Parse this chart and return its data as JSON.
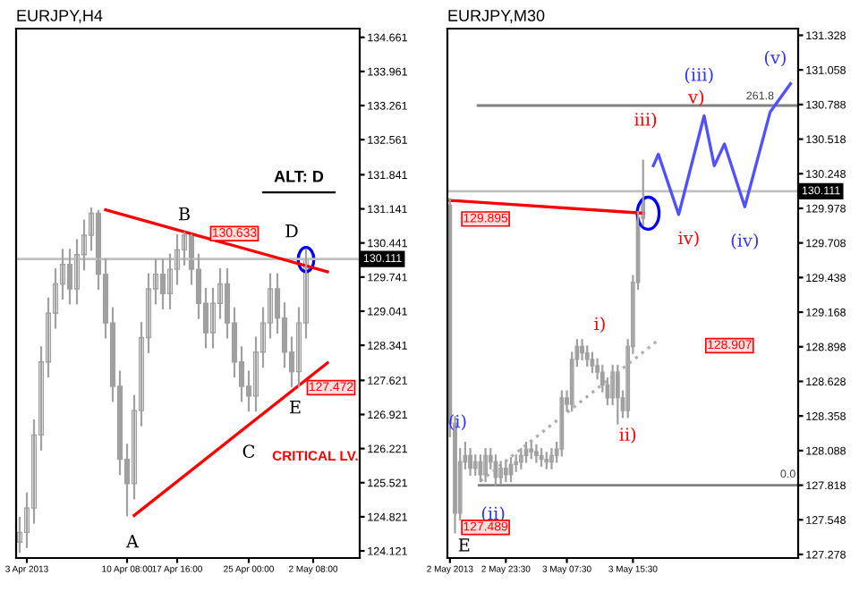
{
  "chart_data": [
    {
      "type": "candlestick",
      "title": "EURJPY,H4",
      "color": "#a0a0a0",
      "categories": [
        null,
        "3 Apr 2013",
        null,
        null,
        null,
        null,
        null,
        null,
        null,
        null,
        null,
        null,
        null,
        null,
        null,
        "10 Apr 08:00",
        null,
        null,
        null,
        null,
        null,
        null,
        "17 Apr 16:00",
        null,
        null,
        null,
        null,
        null,
        null,
        null,
        null,
        null,
        "25 Apr 00:00",
        null,
        null,
        null,
        null,
        null,
        null,
        null,
        null,
        "2 May 08:00",
        null,
        null,
        null,
        null,
        null,
        null
      ],
      "ohlc": [
        [
          124.3,
          124.8,
          124.1,
          124.5
        ],
        [
          124.5,
          125.3,
          124.2,
          125.0
        ],
        [
          125.0,
          126.8,
          124.7,
          126.5
        ],
        [
          126.5,
          128.3,
          126.2,
          128.0
        ],
        [
          128.0,
          129.3,
          127.7,
          129.0
        ],
        [
          129.0,
          129.9,
          128.7,
          129.6
        ],
        [
          129.6,
          130.3,
          129.3,
          130.0
        ],
        [
          130.0,
          130.3,
          129.2,
          129.5
        ],
        [
          129.5,
          130.5,
          129.2,
          130.2
        ],
        [
          130.2,
          130.9,
          129.9,
          130.6
        ],
        [
          130.6,
          131.15,
          130.3,
          131.05
        ],
        [
          131.05,
          131.1,
          129.5,
          129.8
        ],
        [
          129.8,
          130.1,
          128.5,
          128.8
        ],
        [
          128.8,
          129.1,
          127.2,
          127.5
        ],
        [
          127.5,
          127.8,
          125.7,
          126.0
        ],
        [
          126.0,
          126.3,
          124.85,
          125.5
        ],
        [
          125.5,
          127.3,
          125.2,
          127.0
        ],
        [
          127.0,
          128.8,
          126.7,
          128.5
        ],
        [
          128.5,
          129.8,
          128.2,
          129.5
        ],
        [
          129.5,
          130.1,
          129.2,
          129.8
        ],
        [
          129.8,
          130.1,
          129.1,
          129.4
        ],
        [
          129.4,
          130.2,
          129.1,
          129.9
        ],
        [
          129.9,
          130.6,
          129.6,
          130.3
        ],
        [
          130.3,
          130.65,
          130.0,
          130.6
        ],
        [
          130.6,
          130.6,
          129.6,
          129.9
        ],
        [
          129.9,
          130.2,
          128.9,
          129.2
        ],
        [
          129.2,
          129.5,
          128.3,
          128.6
        ],
        [
          128.6,
          129.5,
          128.3,
          129.2
        ],
        [
          129.2,
          129.9,
          128.9,
          129.6
        ],
        [
          129.6,
          129.9,
          128.5,
          128.8
        ],
        [
          128.8,
          129.1,
          127.7,
          128.0
        ],
        [
          128.0,
          128.3,
          127.2,
          127.5
        ],
        [
          127.5,
          127.8,
          127.0,
          127.3
        ],
        [
          127.3,
          128.5,
          127.0,
          128.2
        ],
        [
          128.2,
          129.1,
          127.9,
          128.8
        ],
        [
          128.8,
          129.8,
          128.5,
          129.5
        ],
        [
          129.5,
          129.8,
          128.6,
          128.9
        ],
        [
          128.9,
          129.2,
          127.9,
          128.2
        ],
        [
          128.2,
          128.5,
          127.5,
          127.8
        ],
        [
          127.8,
          129.1,
          127.5,
          128.8
        ],
        [
          128.8,
          130.3,
          128.5,
          130.1
        ],
        null,
        null,
        null,
        null,
        null,
        null,
        null
      ],
      "series": [
        {
          "type": "line",
          "color": "#ff0000",
          "line_style": "solid",
          "values": [
            null,
            null,
            null,
            null,
            null,
            null,
            null,
            null,
            null,
            null,
            null,
            null,
            131.12,
            null,
            null,
            null,
            null,
            null,
            null,
            null,
            null,
            null,
            null,
            null,
            null,
            null,
            null,
            null,
            null,
            null,
            null,
            null,
            null,
            null,
            null,
            null,
            null,
            null,
            null,
            null,
            null,
            null,
            null,
            129.85,
            null,
            null,
            null,
            null
          ]
        },
        {
          "type": "line",
          "color": "#ff0000",
          "line_style": "solid",
          "values": [
            null,
            null,
            null,
            null,
            null,
            null,
            null,
            null,
            null,
            null,
            null,
            null,
            null,
            null,
            null,
            null,
            124.85,
            null,
            null,
            null,
            null,
            null,
            null,
            null,
            null,
            null,
            null,
            null,
            null,
            null,
            null,
            null,
            null,
            null,
            null,
            null,
            null,
            null,
            null,
            null,
            null,
            null,
            null,
            127.98,
            null,
            null,
            null,
            null
          ]
        }
      ],
      "ylim": [
        123.975,
        134.84
      ],
      "yticks": [
        124.121,
        124.821,
        125.521,
        126.221,
        126.921,
        127.621,
        128.341,
        129.041,
        129.741,
        130.441,
        131.141,
        131.841,
        132.561,
        133.261,
        133.961,
        134.661
      ],
      "ref_lines": [
        {
          "axis": "y",
          "value": 130.111,
          "label": "130.111",
          "color": "#c0c0c0"
        }
      ],
      "annotations": [
        "ALT: D",
        "B",
        "D",
        "A",
        "C",
        "E",
        "CRITICAL LV.",
        "130.633",
        "127.472"
      ]
    },
    {
      "type": "candlestick",
      "title": "EURJPY,M30",
      "color": "#a0a0a0",
      "categories": [
        "2 May 2013",
        null,
        null,
        null,
        null,
        null,
        null,
        null,
        null,
        null,
        null,
        "2 May 23:30",
        null,
        null,
        null,
        null,
        null,
        null,
        null,
        null,
        null,
        null,
        null,
        "3 May 07:30",
        null,
        null,
        null,
        null,
        null,
        null,
        null,
        null,
        null,
        null,
        null,
        null,
        "3 May 15:30",
        null,
        null,
        null,
        null,
        null,
        null,
        null,
        null,
        null,
        null,
        null,
        null,
        null,
        null,
        null,
        null,
        null,
        null,
        null,
        null,
        null,
        null,
        null,
        null,
        null,
        null,
        null,
        null,
        null,
        null,
        null,
        null
      ],
      "ohlc": [
        [
          130.0,
          130.05,
          128.2,
          128.3
        ],
        [
          128.3,
          128.35,
          127.45,
          127.6
        ],
        [
          127.6,
          128.1,
          127.55,
          128.0
        ],
        [
          128.0,
          128.15,
          127.95,
          128.05
        ],
        [
          128.05,
          128.1,
          127.9,
          127.95
        ],
        [
          127.95,
          128.05,
          127.9,
          128.0
        ],
        [
          128.0,
          128.05,
          127.85,
          127.9
        ],
        [
          127.9,
          128.1,
          127.85,
          128.05
        ],
        [
          128.05,
          128.1,
          127.95,
          128.0
        ],
        [
          128.0,
          128.05,
          127.82,
          127.88
        ],
        [
          127.88,
          128.0,
          127.83,
          127.95
        ],
        [
          127.95,
          128.0,
          127.85,
          127.9
        ],
        [
          127.9,
          128.03,
          127.85,
          127.98
        ],
        [
          127.98,
          128.05,
          127.93,
          128.0
        ],
        [
          128.0,
          128.1,
          127.95,
          128.05
        ],
        [
          128.05,
          128.15,
          128.0,
          128.1
        ],
        [
          128.1,
          128.15,
          128.03,
          128.08
        ],
        [
          128.08,
          128.13,
          128.0,
          128.05
        ],
        [
          128.05,
          128.1,
          127.97,
          128.02
        ],
        [
          128.02,
          128.07,
          127.95,
          128.0
        ],
        [
          128.0,
          128.1,
          127.95,
          128.05
        ],
        [
          128.05,
          128.15,
          128.0,
          128.1
        ],
        [
          128.1,
          128.55,
          128.05,
          128.5
        ],
        [
          128.5,
          128.55,
          128.4,
          128.45
        ],
        [
          128.45,
          128.85,
          128.4,
          128.8
        ],
        [
          128.8,
          128.95,
          128.75,
          128.9
        ],
        [
          128.9,
          128.95,
          128.8,
          128.85
        ],
        [
          128.85,
          128.9,
          128.75,
          128.8
        ],
        [
          128.8,
          128.85,
          128.7,
          128.75
        ],
        [
          128.75,
          128.8,
          128.65,
          128.7
        ],
        [
          128.7,
          128.75,
          128.55,
          128.6
        ],
        [
          128.6,
          128.65,
          128.45,
          128.5
        ],
        [
          128.5,
          128.75,
          128.45,
          128.7
        ],
        [
          128.7,
          128.75,
          128.3,
          128.5
        ],
        [
          128.5,
          128.55,
          128.35,
          128.4
        ],
        [
          128.4,
          128.95,
          128.35,
          128.9
        ],
        [
          128.9,
          129.45,
          128.85,
          129.4
        ],
        [
          129.4,
          129.95,
          129.35,
          129.9
        ],
        [
          129.9,
          130.35,
          129.85,
          130.05
        ],
        null,
        null,
        null,
        null,
        null,
        null,
        null,
        null,
        null,
        null,
        null,
        null,
        null,
        null,
        null,
        null,
        null,
        null,
        null,
        null,
        null,
        null,
        null,
        null,
        null,
        null,
        null,
        null,
        null,
        null
      ],
      "series": [
        {
          "type": "line",
          "color": "#ff0000",
          "line_style": "solid",
          "values": [
            130.04,
            null,
            null,
            null,
            null,
            null,
            null,
            null,
            null,
            null,
            null,
            null,
            null,
            null,
            null,
            null,
            null,
            null,
            null,
            null,
            null,
            null,
            null,
            null,
            null,
            null,
            null,
            null,
            null,
            null,
            null,
            null,
            null,
            null,
            null,
            null,
            null,
            null,
            129.94,
            null,
            null,
            null,
            null,
            null,
            null,
            null,
            null,
            null,
            null,
            null,
            null,
            null,
            null,
            null,
            null,
            null,
            null,
            null,
            null,
            null,
            null,
            null,
            null,
            null,
            null,
            null,
            null,
            null,
            null
          ]
        },
        {
          "type": "line",
          "color": "#b0b0b0",
          "line_style": "dotted",
          "values": [
            null,
            null,
            null,
            null,
            null,
            null,
            127.85,
            null,
            null,
            null,
            null,
            null,
            null,
            null,
            null,
            null,
            null,
            null,
            null,
            null,
            null,
            null,
            null,
            null,
            null,
            null,
            null,
            null,
            null,
            null,
            null,
            null,
            null,
            null,
            null,
            null,
            null,
            null,
            null,
            null,
            null,
            128.95,
            null,
            null,
            null,
            null,
            null,
            null,
            null,
            null,
            null,
            null,
            null,
            null,
            null,
            null,
            null,
            null,
            null,
            null,
            null,
            null,
            null,
            null,
            null,
            null,
            null,
            null,
            null
          ]
        },
        {
          "type": "line",
          "color": "#5050ff",
          "line_style": "solid",
          "values": [
            null,
            null,
            null,
            null,
            null,
            null,
            null,
            null,
            null,
            null,
            null,
            null,
            null,
            null,
            null,
            null,
            null,
            null,
            null,
            null,
            null,
            null,
            null,
            null,
            null,
            null,
            null,
            null,
            null,
            null,
            null,
            null,
            null,
            null,
            null,
            null,
            null,
            null,
            null,
            null,
            130.31,
            130.4,
            null,
            null,
            null,
            129.93,
            null,
            null,
            null,
            null,
            130.7,
            null,
            130.31,
            null,
            130.48,
            null,
            null,
            null,
            129.99,
            null,
            null,
            null,
            null,
            130.73,
            null,
            null,
            null,
            130.95,
            null
          ]
        }
      ],
      "ylim": [
        127.25,
        131.38
      ],
      "yticks": [
        127.278,
        127.548,
        127.818,
        128.088,
        128.358,
        128.628,
        128.898,
        129.168,
        129.438,
        129.708,
        129.978,
        130.248,
        130.518,
        130.788,
        131.058,
        131.328
      ],
      "ref_lines": [
        {
          "axis": "y",
          "value": 130.111,
          "label": "130.111",
          "color": "#c0c0c0"
        },
        {
          "axis": "y",
          "value": 130.78,
          "color": "#808080"
        },
        {
          "axis": "y",
          "value": 127.818,
          "color": "#808080"
        }
      ],
      "annotations": [
        "(i)",
        "(ii)",
        "(iii)",
        "(iv)",
        "(v)",
        "i)",
        "ii)",
        "iii)",
        "iv)",
        "v)",
        "129.895",
        "128.907",
        "127.489",
        "E",
        "261.8",
        "0.0"
      ]
    }
  ]
}
